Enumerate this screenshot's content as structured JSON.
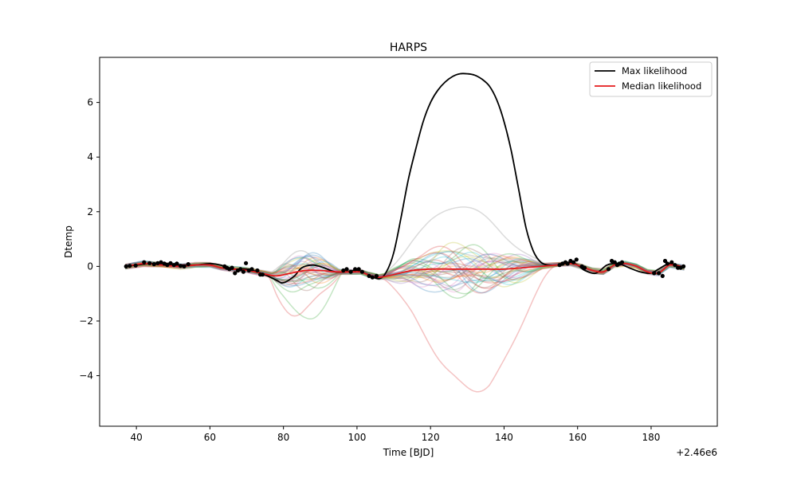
{
  "chart_data": {
    "type": "line",
    "title": "HARPS",
    "xlabel": "Time [BJD]",
    "ylabel": "Dtemp",
    "x_offset_label": "+2.46e6",
    "xlim": [
      30,
      198
    ],
    "ylim": [
      -5.85,
      7.65
    ],
    "xticks": [
      40,
      60,
      80,
      100,
      120,
      140,
      160,
      180
    ],
    "yticks": [
      -4,
      -2,
      0,
      2,
      4,
      6
    ],
    "ytick_labels": [
      "−4",
      "−2",
      "0",
      "2",
      "4",
      "6"
    ],
    "grid": false,
    "legend": {
      "placement": "top-right",
      "entries": [
        {
          "label": "Max likelihood",
          "color": "#000000"
        },
        {
          "label": "Median likelihood",
          "color": "#e41a1c"
        }
      ]
    },
    "series": [
      {
        "name": "Max likelihood",
        "color": "#000000",
        "x": [
          37,
          40,
          44,
          48,
          52,
          56,
          60,
          63,
          66,
          70,
          74,
          78,
          80,
          83,
          85,
          88,
          91,
          94,
          97,
          100,
          103,
          106,
          108,
          110,
          112,
          114,
          116,
          118,
          120,
          122,
          124,
          126,
          128,
          130,
          132,
          134,
          136,
          138,
          140,
          142,
          144,
          146,
          148,
          150,
          152,
          154,
          156,
          158,
          160,
          162,
          165,
          168,
          171,
          174,
          177,
          180,
          182,
          185,
          188,
          189
        ],
        "y": [
          0.0,
          0.05,
          0.1,
          0.1,
          0.05,
          0.05,
          0.1,
          0.05,
          -0.1,
          -0.1,
          -0.25,
          -0.5,
          -0.6,
          -0.35,
          -0.05,
          0.05,
          -0.05,
          -0.2,
          -0.2,
          -0.15,
          -0.3,
          -0.45,
          -0.2,
          0.5,
          1.8,
          3.2,
          4.3,
          5.3,
          6.0,
          6.45,
          6.75,
          6.95,
          7.05,
          7.05,
          7.0,
          6.85,
          6.6,
          6.1,
          5.3,
          4.2,
          2.8,
          1.4,
          0.55,
          0.15,
          0.05,
          0.05,
          0.1,
          0.15,
          0.05,
          -0.15,
          -0.25,
          0.05,
          0.1,
          -0.05,
          -0.2,
          -0.25,
          -0.1,
          0.1,
          0.0,
          -0.05
        ]
      },
      {
        "name": "Median likelihood",
        "color": "#e41a1c",
        "x": [
          37,
          42,
          47,
          52,
          56,
          60,
          63,
          66,
          70,
          74,
          78,
          82,
          86,
          90,
          94,
          98,
          101,
          103,
          106,
          110,
          115,
          120,
          125,
          130,
          135,
          140,
          145,
          150,
          154,
          158,
          161,
          164,
          167,
          170,
          173,
          176,
          179,
          182,
          185,
          188,
          189
        ],
        "y": [
          0.0,
          0.1,
          0.05,
          0.0,
          0.05,
          0.05,
          -0.05,
          -0.1,
          -0.15,
          -0.25,
          -0.35,
          -0.25,
          -0.15,
          -0.15,
          -0.2,
          -0.2,
          -0.2,
          -0.3,
          -0.4,
          -0.3,
          -0.15,
          -0.1,
          -0.1,
          -0.1,
          -0.1,
          -0.1,
          -0.05,
          0.0,
          0.05,
          0.1,
          0.0,
          -0.15,
          -0.2,
          0.05,
          0.1,
          0.0,
          -0.2,
          -0.25,
          0.05,
          0.0,
          -0.05
        ]
      }
    ],
    "data_points": {
      "color": "#000000",
      "x": [
        37.2,
        38.2,
        39.8,
        42.1,
        43.6,
        44.8,
        45.8,
        46.7,
        47.6,
        48.4,
        49.3,
        50.2,
        51.0,
        52.0,
        53.0,
        54.1,
        64.0,
        64.6,
        65.3,
        66.0,
        66.8,
        67.6,
        68.3,
        69.1,
        69.8,
        70.6,
        71.4,
        72.9,
        73.7,
        74.3,
        96.3,
        97.2,
        98.3,
        99.5,
        100.5,
        101.4,
        103.3,
        104.2,
        105.3,
        155.1,
        155.9,
        156.7,
        157.3,
        158.1,
        158.9,
        159.7,
        161.2,
        161.9,
        168.4,
        169.3,
        170.1,
        170.8,
        171.4,
        172.1,
        180.8,
        182.1,
        183.1,
        183.8,
        184.4,
        185.6,
        186.5,
        187.3,
        188.0,
        188.8
      ],
      "y": [
        0.0,
        0.02,
        0.03,
        0.15,
        0.12,
        0.08,
        0.12,
        0.15,
        0.1,
        0.05,
        0.12,
        0.05,
        0.1,
        0.02,
        0.0,
        0.08,
        0.0,
        -0.05,
        -0.1,
        -0.05,
        -0.25,
        -0.15,
        -0.1,
        -0.2,
        0.12,
        -0.15,
        -0.1,
        -0.15,
        -0.3,
        -0.3,
        -0.15,
        -0.1,
        -0.2,
        -0.1,
        -0.1,
        -0.2,
        -0.35,
        -0.4,
        -0.35,
        0.05,
        0.1,
        0.15,
        0.1,
        0.2,
        0.15,
        0.25,
        0.0,
        -0.05,
        -0.1,
        0.2,
        0.15,
        0.05,
        0.1,
        0.15,
        -0.25,
        -0.25,
        -0.35,
        0.2,
        0.1,
        0.15,
        0.05,
        -0.05,
        -0.05,
        0.0
      ]
    },
    "posterior_samples": {
      "count": 40,
      "palette": [
        "#1f77b4",
        "#ff7f0e",
        "#2ca02c",
        "#d62728",
        "#9467bd",
        "#8c564b",
        "#e377c2",
        "#7f7f7f",
        "#bcbd22",
        "#17becf"
      ],
      "opacity": 0.28
    }
  }
}
